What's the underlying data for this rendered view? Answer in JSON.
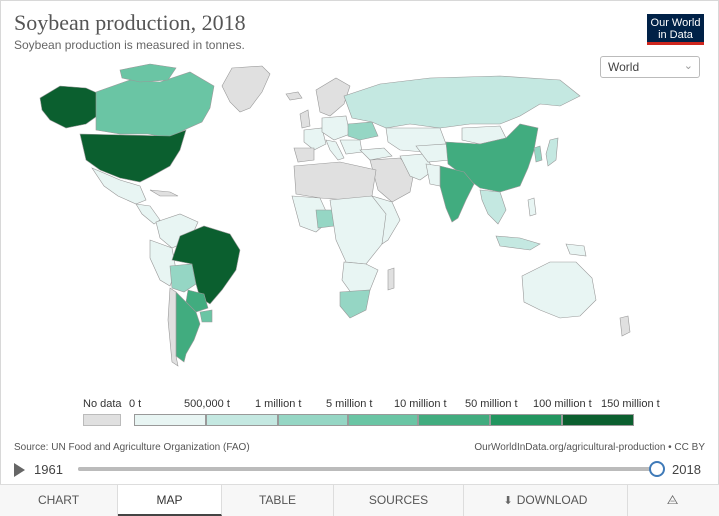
{
  "header": {
    "title": "Soybean production, 2018",
    "subtitle": "Soybean production is measured in tonnes.",
    "logo_line1": "Our World",
    "logo_line2": "in Data"
  },
  "region_select": {
    "value": "World"
  },
  "legend": {
    "nodata_label": "No data",
    "bins": [
      "0 t",
      "500,000 t",
      "1 million t",
      "5 million t",
      "10 million t",
      "50 million t",
      "100 million t",
      "150 million t"
    ],
    "colors": [
      "#e8f5f3",
      "#c4e8e1",
      "#95d6c4",
      "#6ac5a4",
      "#41ac7f",
      "#22955f",
      "#0b5f2f"
    ],
    "nodata_color": "#e0e0e0"
  },
  "footer": {
    "source": "Source: UN Food and Agriculture Organization (FAO)",
    "url": "OurWorldInData.org/agricultural-production • CC BY"
  },
  "timeline": {
    "start_year": "1961",
    "end_year": "2018",
    "position": 1.0
  },
  "tabs": [
    {
      "label": "CHART"
    },
    {
      "label": "MAP"
    },
    {
      "label": "TABLE"
    },
    {
      "label": "SOURCES"
    },
    {
      "label": "DOWNLOAD"
    },
    {
      "label": ""
    }
  ],
  "icons": {
    "download": "download-icon",
    "share": "share-icon",
    "play": "play-icon"
  }
}
